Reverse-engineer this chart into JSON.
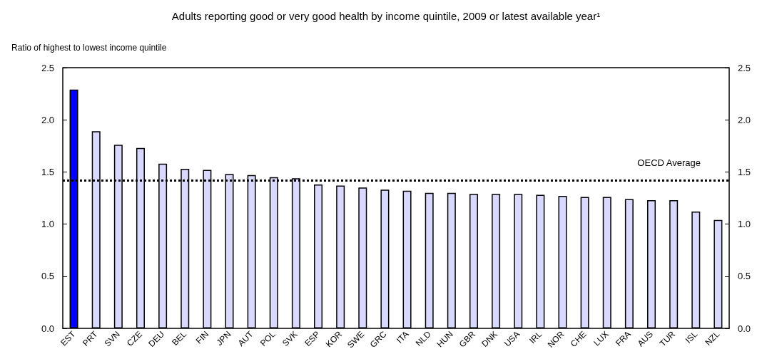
{
  "chart_data": {
    "type": "bar",
    "title": "Adults reporting good or very good health by income quintile, 2009 or latest available year¹",
    "ylabel": "Ratio of highest to lowest income quintile",
    "categories": [
      "EST",
      "PRT",
      "SVN",
      "CZE",
      "DEU",
      "BEL",
      "FIN",
      "JPN",
      "AUT",
      "POL",
      "SVK",
      "ESP",
      "KOR",
      "SWE",
      "GRC",
      "ITA",
      "NLD",
      "HUN",
      "GBR",
      "DNK",
      "USA",
      "IRL",
      "NOR",
      "CHE",
      "LUX",
      "FRA",
      "AUS",
      "TUR",
      "ISL",
      "NZL"
    ],
    "values": [
      2.29,
      1.89,
      1.76,
      1.73,
      1.58,
      1.53,
      1.52,
      1.48,
      1.47,
      1.45,
      1.44,
      1.38,
      1.37,
      1.35,
      1.33,
      1.32,
      1.3,
      1.3,
      1.29,
      1.29,
      1.29,
      1.28,
      1.27,
      1.26,
      1.26,
      1.24,
      1.23,
      1.23,
      1.12,
      1.04
    ],
    "colors": [
      "#0000ff",
      "#d9d9ff",
      "#d9d9ff",
      "#d9d9ff",
      "#d9d9ff",
      "#d9d9ff",
      "#d9d9ff",
      "#d9d9ff",
      "#d9d9ff",
      "#d9d9ff",
      "#d9d9ff",
      "#d9d9ff",
      "#d9d9ff",
      "#d9d9ff",
      "#d9d9ff",
      "#d9d9ff",
      "#d9d9ff",
      "#d9d9ff",
      "#d9d9ff",
      "#d9d9ff",
      "#d9d9ff",
      "#d9d9ff",
      "#d9d9ff",
      "#d9d9ff",
      "#d9d9ff",
      "#d9d9ff",
      "#d9d9ff",
      "#d9d9ff",
      "#d9d9ff",
      "#d9d9ff"
    ],
    "ylim": [
      0,
      2.5
    ],
    "yticks": [
      {
        "value": 0,
        "label": "0.0"
      },
      0.5,
      {
        "value": 1,
        "label": "1.0"
      },
      1.5,
      {
        "value": 2,
        "label": "2.0"
      },
      2.5
    ],
    "y2lim": [
      0,
      2.5
    ],
    "y2ticks": [
      {
        "value": 0,
        "label": "0.0"
      },
      0.5,
      {
        "value": 1,
        "label": "1.0"
      },
      1.5,
      {
        "value": 2,
        "label": "2.0"
      },
      2.5
    ],
    "ref_lines": [
      {
        "axis": "y",
        "value": 1.42,
        "label": "OECD Average",
        "line_style": "dotted",
        "color": "#000000"
      }
    ],
    "grid": false
  }
}
